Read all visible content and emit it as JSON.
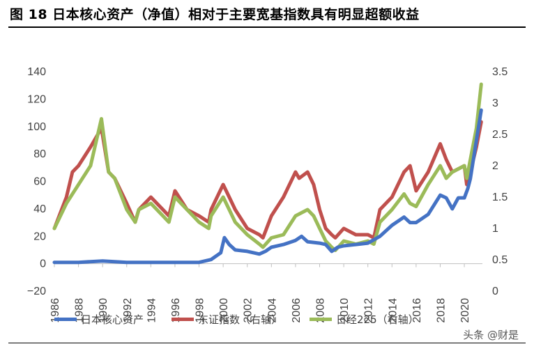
{
  "figure": {
    "title": "图 18 日本核心资产（净值）相对于主要宽基指数具有明显超额收益"
  },
  "watermark": "头条 @财是",
  "colors": {
    "core_assets": "#4472C4",
    "tse_index": "#C0504D",
    "nikkei225": "#9BBB59"
  },
  "chart_data": {
    "type": "line",
    "x_ticks": [
      "1986",
      "1988",
      "1990",
      "1992",
      "1994",
      "1996",
      "1998",
      "2000",
      "2002",
      "2004",
      "2006",
      "2008",
      "2010",
      "2012",
      "2014",
      "2016",
      "2018",
      "2020"
    ],
    "xlim": [
      1986,
      2021.5
    ],
    "y_left": {
      "ticks": [
        "140",
        "120",
        "100",
        "80",
        "60",
        "40",
        "20",
        "0",
        "−20"
      ],
      "lim": [
        -20,
        140
      ]
    },
    "y_right": {
      "ticks": [
        "3.5",
        "3",
        "2.5",
        "2",
        "1.5",
        "1",
        "0.5",
        "0"
      ],
      "lim": [
        0,
        3.5
      ]
    },
    "grid": false,
    "legend_position": "bottom",
    "series": [
      {
        "name": "日本核心资产",
        "axis": "left",
        "x": [
          1986,
          1988,
          1990,
          1992,
          1994,
          1996,
          1998,
          1999,
          1999.8,
          2000.1,
          2000.5,
          2001,
          2002,
          2003,
          2003.5,
          2004,
          2005,
          2006,
          2006.5,
          2007,
          2008,
          2008.5,
          2009,
          2009.5,
          2010,
          2011,
          2012,
          2013,
          2014,
          2015,
          2015.5,
          2016,
          2017,
          2018,
          2018.5,
          2019,
          2019.5,
          2020,
          2020.3,
          2020.5,
          2021,
          2021.4
        ],
        "y": [
          1,
          1,
          2,
          1,
          1,
          1,
          1,
          3,
          8,
          19,
          14,
          10,
          9,
          7,
          9,
          12,
          14,
          17,
          20,
          16,
          15,
          14,
          9,
          12,
          13,
          14,
          15,
          20,
          28,
          34,
          30,
          30,
          36,
          50,
          48,
          40,
          48,
          48,
          55,
          62,
          90,
          112
        ]
      },
      {
        "name": "东证指数（右轴）",
        "axis": "right",
        "x": [
          1986,
          1987,
          1987.5,
          1988,
          1989,
          1989.9,
          1990.5,
          1991,
          1992,
          1992.7,
          1993,
          1994,
          1995,
          1995.5,
          1996,
          1997,
          1998,
          1998.8,
          1999,
          2000,
          2000.5,
          2001,
          2002,
          2003,
          2003.3,
          2004,
          2005,
          2006,
          2006.3,
          2007,
          2007.5,
          2008,
          2008.5,
          2009,
          2009.3,
          2010,
          2011,
          2012,
          2012.5,
          2013,
          2013.5,
          2014,
          2015,
          2015.5,
          2016,
          2017,
          2018,
          2018.5,
          2019,
          2020,
          2020.2,
          2020.5,
          2021,
          2021.4
        ],
        "y": [
          1.0,
          1.5,
          1.9,
          2.0,
          2.3,
          2.6,
          1.9,
          1.8,
          1.4,
          1.1,
          1.3,
          1.5,
          1.3,
          1.2,
          1.6,
          1.3,
          1.2,
          1.1,
          1.3,
          1.7,
          1.5,
          1.3,
          1.0,
          0.9,
          0.85,
          1.2,
          1.5,
          1.9,
          1.8,
          1.9,
          1.7,
          1.3,
          1.0,
          0.9,
          0.85,
          1.0,
          0.9,
          0.9,
          0.85,
          1.3,
          1.4,
          1.5,
          1.9,
          2.0,
          1.6,
          1.9,
          2.35,
          2.1,
          1.9,
          2.0,
          1.7,
          1.9,
          2.3,
          2.7
        ]
      },
      {
        "name": "日经225（右轴）",
        "axis": "right",
        "x": [
          1986,
          1987,
          1988,
          1989,
          1989.9,
          1990.5,
          1991,
          1992,
          1992.7,
          1993,
          1994,
          1995,
          1995.5,
          1996,
          1997,
          1998,
          1998.8,
          1999,
          2000,
          2000.5,
          2001,
          2002,
          2003,
          2003.3,
          2004,
          2005,
          2006,
          2007,
          2007.5,
          2008,
          2008.5,
          2009,
          2009.3,
          2010,
          2011,
          2012,
          2012.5,
          2013,
          2014,
          2015,
          2015.5,
          2016,
          2017,
          2018,
          2018.5,
          2019,
          2020,
          2020.2,
          2020.5,
          2021,
          2021.4
        ],
        "y": [
          1.0,
          1.4,
          1.7,
          2.0,
          2.75,
          1.9,
          1.8,
          1.3,
          1.1,
          1.3,
          1.4,
          1.2,
          1.1,
          1.5,
          1.3,
          1.1,
          1.0,
          1.2,
          1.5,
          1.3,
          1.1,
          0.9,
          0.75,
          0.7,
          0.85,
          0.9,
          1.2,
          1.3,
          1.2,
          1.0,
          0.8,
          0.7,
          0.65,
          0.8,
          0.75,
          0.8,
          0.75,
          1.1,
          1.3,
          1.55,
          1.4,
          1.35,
          1.7,
          2.0,
          1.8,
          1.9,
          2.0,
          1.8,
          2.1,
          2.6,
          3.3
        ]
      }
    ]
  }
}
